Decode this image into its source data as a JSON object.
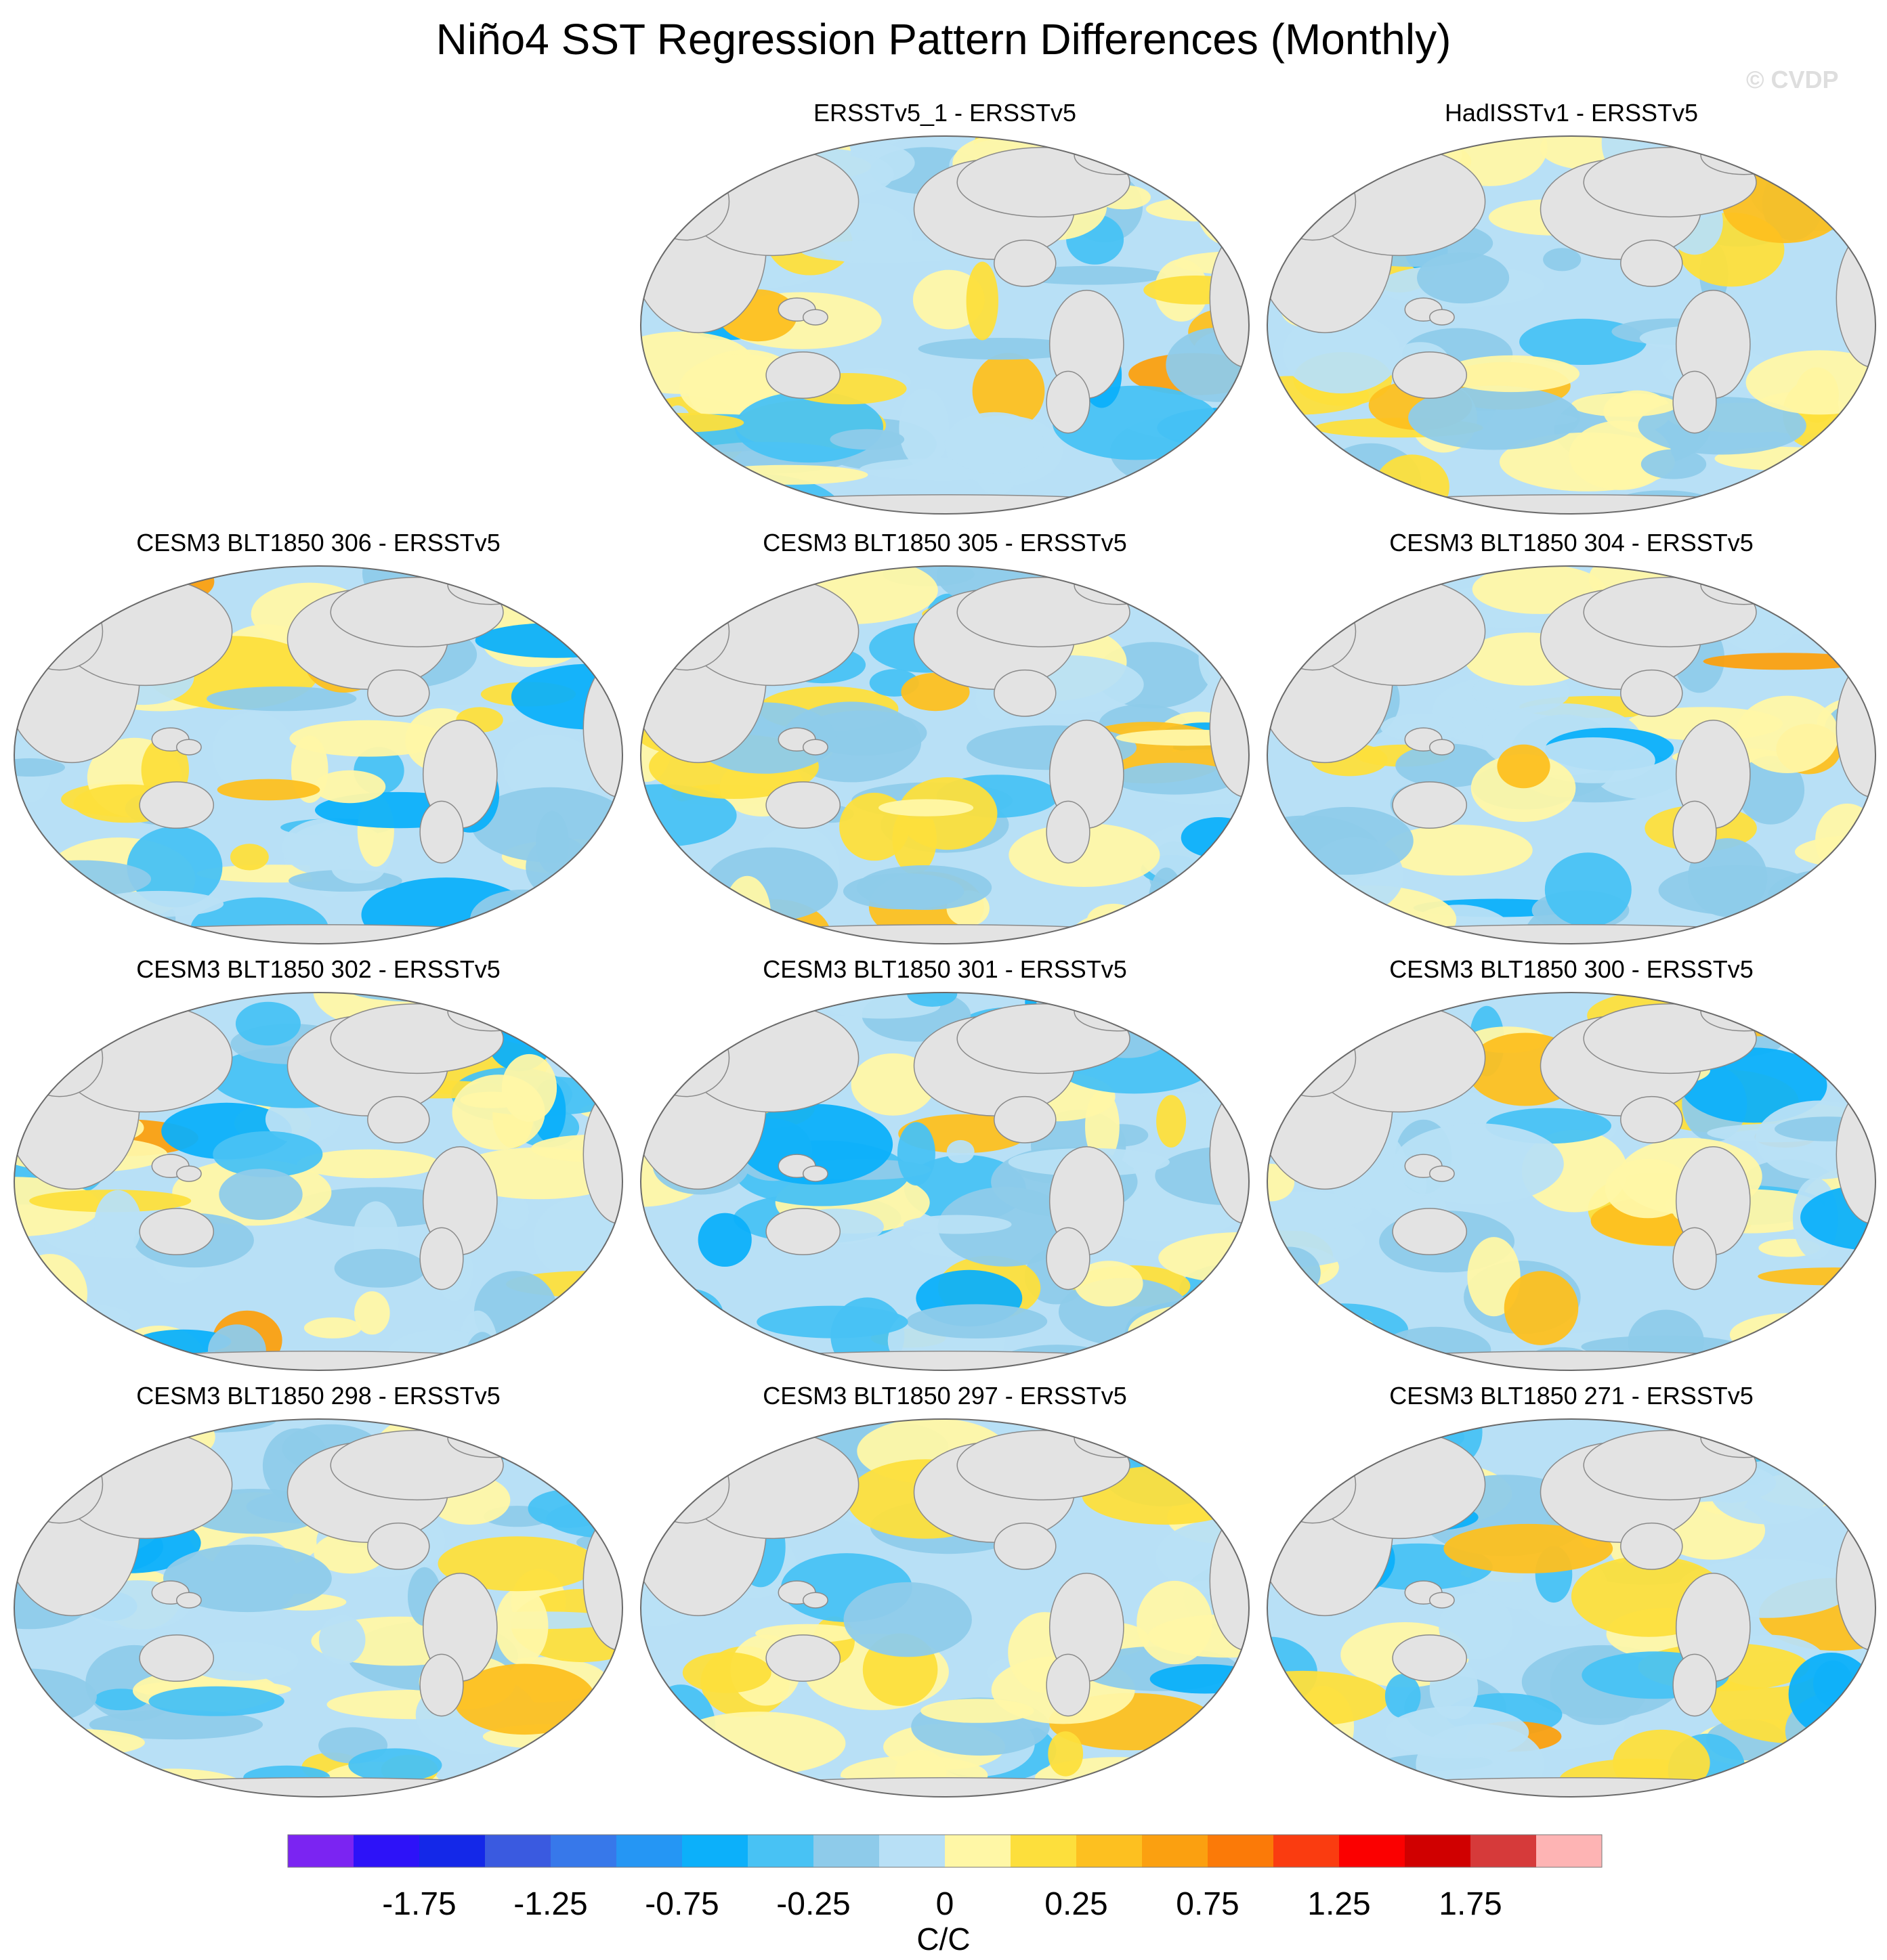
{
  "title": "Niño4 SST Regression Pattern Differences (Monthly)",
  "watermark": "© CVDP",
  "colors": {
    "land": "#e3e3e3",
    "coast": "#8a8a8a",
    "frame": "#6a6a6a"
  },
  "panels": [
    {
      "title": "ERSSTv5_1 - ERSSTv5",
      "seed": 11
    },
    {
      "title": "HadISSTv1 - ERSSTv5",
      "seed": 23
    },
    {
      "title": "CESM3 BLT1850 306 - ERSSTv5",
      "seed": 37
    },
    {
      "title": "CESM3 BLT1850 305 - ERSSTv5",
      "seed": 41
    },
    {
      "title": "CESM3 BLT1850 304 - ERSSTv5",
      "seed": 53
    },
    {
      "title": "CESM3 BLT1850 302 - ERSSTv5",
      "seed": 61
    },
    {
      "title": "CESM3 BLT1850 301 - ERSSTv5",
      "seed": 73
    },
    {
      "title": "CESM3 BLT1850 300 - ERSSTv5",
      "seed": 89
    },
    {
      "title": "CESM3 BLT1850 298 - ERSSTv5",
      "seed": 97
    },
    {
      "title": "CESM3 BLT1850 297 - ERSSTv5",
      "seed": 103
    },
    {
      "title": "CESM3 BLT1850 271 - ERSSTv5",
      "seed": 113
    }
  ],
  "colorbar": {
    "units": "C/C",
    "colors": [
      "#7b24f2",
      "#2d12f8",
      "#1428e8",
      "#3a5ae0",
      "#3778ea",
      "#2596f4",
      "#0cb0fa",
      "#48c2f4",
      "#8ecbea",
      "#b8e0f6",
      "#fff7a6",
      "#fddf3c",
      "#fdc020",
      "#fba010",
      "#fb7a08",
      "#fa3c10",
      "#fb0000",
      "#d00000",
      "#d63a3a",
      "#feb4b4"
    ],
    "tick_labels": [
      "-1.75",
      "-1.25",
      "-0.75",
      "-0.25",
      "0",
      "0.25",
      "0.75",
      "1.25",
      "1.75"
    ]
  }
}
